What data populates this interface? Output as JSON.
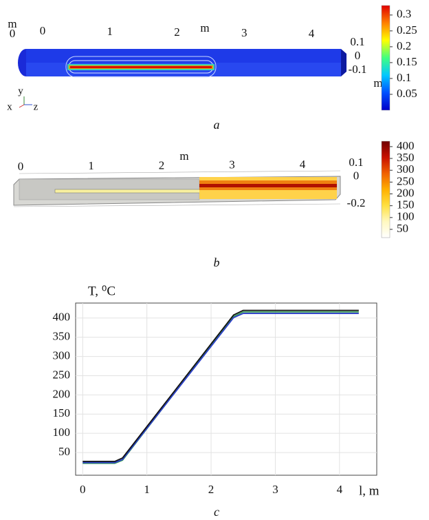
{
  "chart_data": [
    {
      "type": "render3d",
      "caption": "a",
      "unit_labels": [
        "m",
        "m",
        "m"
      ],
      "corner_ticks": [
        0
      ],
      "xlim": [
        0,
        4
      ],
      "xticks": [
        0,
        1,
        2,
        3,
        4
      ],
      "ylim": [
        -0.1,
        0.1
      ],
      "yticks": [
        0.1,
        0,
        -0.1
      ],
      "triad": [
        "y",
        "x",
        "z"
      ],
      "colormap": [
        "#0000c8",
        "#0050ff",
        "#00c8ff",
        "#40ff80",
        "#ffff00",
        "#ff8000",
        "#e00000"
      ],
      "clim": [
        0,
        0.33
      ],
      "cticks": [
        0.3,
        0.25,
        0.2,
        0.15,
        0.1,
        0.05
      ]
    },
    {
      "type": "render3d",
      "caption": "b",
      "unit_labels": [
        "m"
      ],
      "xlim": [
        0,
        4
      ],
      "xticks": [
        0,
        1,
        2,
        3,
        4
      ],
      "ylim": [
        -0.2,
        0.1
      ],
      "yticks": [
        0.1,
        0,
        -0.2
      ],
      "colormap": [
        "#ffffff",
        "#fff8c0",
        "#ffe040",
        "#ffb000",
        "#f06000",
        "#c81000",
        "#700000"
      ],
      "clim": [
        15,
        423
      ],
      "cticks": [
        400,
        350,
        300,
        250,
        200,
        150,
        100,
        50
      ]
    },
    {
      "type": "line",
      "caption": "c",
      "ylabel": "T, ⁰C",
      "xlabel": "l, m",
      "x": [
        0,
        0.5,
        0.62,
        2.35,
        2.5,
        4.3
      ],
      "series": [
        {
          "color": "#3a9a5a",
          "values": [
            22,
            22,
            30,
            404,
            416,
            416
          ]
        },
        {
          "color": "#2a3cc8",
          "values": [
            24,
            24,
            32,
            401,
            412,
            412
          ]
        },
        {
          "color": "#111111",
          "values": [
            27,
            27,
            36,
            408,
            420,
            420
          ]
        }
      ],
      "xlim": [
        -0.11,
        4.58
      ],
      "xticks": [
        0,
        1,
        2,
        3,
        4
      ],
      "ylim": [
        -9,
        439
      ],
      "yticks": [
        50,
        100,
        150,
        200,
        250,
        300,
        350,
        400
      ],
      "grid": true
    }
  ]
}
